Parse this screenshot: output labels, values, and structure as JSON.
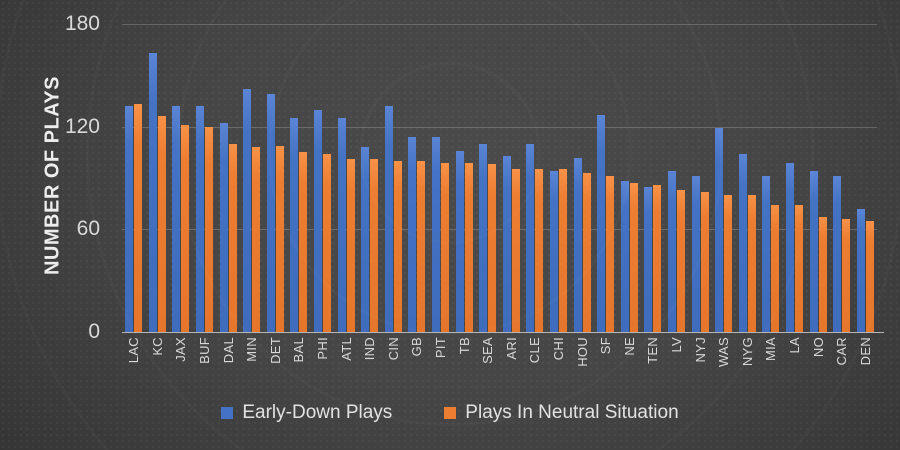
{
  "chart_data": {
    "type": "bar",
    "title": "",
    "ylabel": "NUMBER OF PLAYS",
    "xlabel": "",
    "ylim": [
      0,
      180
    ],
    "y_ticks": [
      0,
      60,
      120,
      180
    ],
    "grid": true,
    "legend_position": "bottom",
    "background": "dark-gray-gradient",
    "categories": [
      "LAC",
      "KC",
      "JAX",
      "BUF",
      "DAL",
      "MIN",
      "DET",
      "BAL",
      "PHI",
      "ATL",
      "IND",
      "CIN",
      "GB",
      "PIT",
      "TB",
      "SEA",
      "ARI",
      "CLE",
      "CHI",
      "HOU",
      "SF",
      "NE",
      "TEN",
      "LV",
      "NYJ",
      "WAS",
      "NYG",
      "MIA",
      "LA",
      "NO",
      "CAR",
      "DEN"
    ],
    "series": [
      {
        "name": "Early-Down Plays",
        "color": "#4472C4",
        "values": [
          132,
          163,
          132,
          132,
          122,
          142,
          139,
          125,
          130,
          125,
          108,
          132,
          114,
          114,
          106,
          110,
          103,
          110,
          94,
          102,
          127,
          88,
          85,
          94,
          91,
          119,
          104,
          91,
          99,
          94,
          91,
          72
        ]
      },
      {
        "name": "Plays In Neutral Situation",
        "color": "#ED7D31",
        "values": [
          133,
          126,
          121,
          120,
          110,
          108,
          109,
          105,
          104,
          101,
          101,
          100,
          100,
          99,
          99,
          98,
          95,
          95,
          95,
          93,
          91,
          87,
          86,
          83,
          82,
          80,
          80,
          74,
          74,
          67,
          66,
          65
        ]
      }
    ]
  },
  "colors": {
    "text_light": "#d9d9d9",
    "axis_line": "#b5b5b5",
    "gridline": "#5f5f5f"
  }
}
